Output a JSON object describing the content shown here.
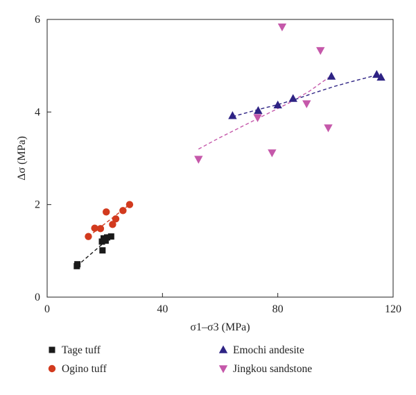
{
  "chart_data": {
    "type": "scatter",
    "title": "",
    "xlabel": "σ1–σ3 (MPa)",
    "ylabel": "Δσ (MPa)",
    "xlim": [
      0,
      120
    ],
    "ylim": [
      0,
      6
    ],
    "xticks": [
      "0",
      "40",
      "80",
      "120"
    ],
    "yticks": [
      "0",
      "2",
      "4",
      "6"
    ],
    "grid": false,
    "legend_position": "bottom",
    "series": [
      {
        "name": "Tage tuff",
        "marker": "square",
        "color": "#1a1a1a",
        "trend_color": "#1a1a1a",
        "points": [
          [
            10.3,
            0.67
          ],
          [
            10.5,
            0.71
          ],
          [
            19.0,
            1.2
          ],
          [
            19.2,
            1.01
          ],
          [
            19.6,
            1.27
          ],
          [
            20.3,
            1.22
          ],
          [
            20.8,
            1.29
          ],
          [
            22.2,
            1.31
          ]
        ],
        "trend": [
          [
            10.3,
            0.67
          ],
          [
            22.2,
            1.31
          ]
        ]
      },
      {
        "name": "Ogino tuff",
        "marker": "circle",
        "color": "#d23a1e",
        "trend_color": "#d23a1e",
        "points": [
          [
            14.3,
            1.31
          ],
          [
            16.5,
            1.49
          ],
          [
            18.5,
            1.48
          ],
          [
            20.5,
            1.84
          ],
          [
            22.7,
            1.57
          ],
          [
            23.8,
            1.69
          ],
          [
            26.3,
            1.87
          ],
          [
            28.6,
            2.0
          ]
        ],
        "trend": [
          [
            14.3,
            1.31
          ],
          [
            28.6,
            2.0
          ]
        ]
      },
      {
        "name": "Emochi andesite",
        "marker": "triangle-up",
        "color": "#2e2384",
        "trend_color": "#2e2384",
        "points": [
          [
            64.3,
            3.92
          ],
          [
            73.2,
            4.03
          ],
          [
            80.0,
            4.15
          ],
          [
            85.3,
            4.29
          ],
          [
            98.6,
            4.77
          ],
          [
            114.3,
            4.81
          ],
          [
            115.8,
            4.75
          ]
        ],
        "trend": [
          [
            64.3,
            3.9
          ],
          [
            73,
            4.05
          ],
          [
            80,
            4.16
          ],
          [
            86,
            4.27
          ],
          [
            93,
            4.42
          ],
          [
            100,
            4.56
          ],
          [
            107,
            4.68
          ],
          [
            115.8,
            4.82
          ]
        ]
      },
      {
        "name": "Jingkou sandstone",
        "marker": "triangle-down",
        "color": "#c558aa",
        "trend_color": "#c558aa",
        "points": [
          [
            52.5,
            2.98
          ],
          [
            73.0,
            3.88
          ],
          [
            78.0,
            3.12
          ],
          [
            81.5,
            5.84
          ],
          [
            90.0,
            4.18
          ],
          [
            94.8,
            5.33
          ],
          [
            97.5,
            3.66
          ]
        ],
        "trend": [
          [
            52.5,
            3.2
          ],
          [
            60,
            3.45
          ],
          [
            68,
            3.7
          ],
          [
            76,
            3.95
          ],
          [
            84,
            4.2
          ],
          [
            91,
            4.45
          ],
          [
            97.5,
            4.74
          ]
        ]
      }
    ]
  }
}
